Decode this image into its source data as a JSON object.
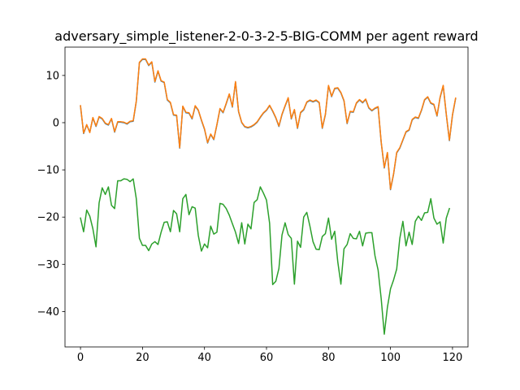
{
  "chart_data": {
    "type": "line",
    "title": "adversary_simple_listener-2-0-3-2-5-BIG-COMM per agent reward",
    "xlabel": "",
    "ylabel": "",
    "xlim": [
      -5,
      125
    ],
    "ylim": [
      -47.5,
      16
    ],
    "xticks": [
      0,
      20,
      40,
      60,
      80,
      100,
      120
    ],
    "yticks": [
      -40,
      -30,
      -20,
      -10,
      0,
      10
    ],
    "grid": false,
    "legend": "none",
    "series": [
      {
        "color": "#1f77b4",
        "values": [
          3.5,
          -2.3,
          -0.5,
          -2.0,
          1.0,
          -0.8,
          1.2,
          0.8,
          -0.2,
          -0.5,
          0.8,
          -2.0,
          0.1,
          0.1,
          0.0,
          -0.3,
          0.2,
          0.3,
          4.5,
          12.7,
          13.4,
          13.4,
          12.1,
          12.8,
          8.6,
          10.9,
          8.8,
          8.5,
          4.8,
          4.2,
          1.6,
          1.5,
          -5.4,
          3.4,
          2.1,
          2.0,
          0.8,
          3.5,
          2.6,
          0.5,
          -1.4,
          -4.3,
          -2.5,
          -3.6,
          -0.5,
          2.9,
          2.1,
          4.0,
          6.0,
          3.3,
          8.6,
          2.3,
          0.0,
          -0.9,
          -1.1,
          -0.9,
          -0.5,
          0.1,
          1.1,
          2.0,
          2.6,
          3.6,
          2.4,
          1.0,
          -0.8,
          1.7,
          3.5,
          5.2,
          0.8,
          2.7,
          -1.2,
          2.1,
          2.7,
          4.3,
          4.7,
          4.4,
          4.7,
          4.2,
          -1.2,
          1.7,
          7.8,
          5.5,
          7.2,
          7.3,
          6.3,
          4.6,
          -0.2,
          2.3,
          2.2,
          4.1,
          4.8,
          4.2,
          4.9,
          3.1,
          2.5,
          3.0,
          3.3,
          -4.2,
          -9.6,
          -6.4,
          -14.2,
          -10.9,
          -6.4,
          -5.4,
          -3.7,
          -2.0,
          -1.6,
          0.6,
          1.1,
          0.9,
          2.6,
          4.8,
          5.4,
          4.1,
          3.8,
          1.4,
          5.3,
          7.8,
          1.7,
          -3.8,
          1.6,
          5.1
        ]
      },
      {
        "color": "#ff7f0e",
        "values": [
          3.6,
          -2.2,
          -0.4,
          -2.1,
          1.1,
          -0.7,
          1.3,
          0.9,
          -0.1,
          -0.4,
          0.9,
          -1.9,
          0.2,
          0.2,
          0.1,
          -0.2,
          0.3,
          0.4,
          4.6,
          12.8,
          13.5,
          13.5,
          12.2,
          12.9,
          8.7,
          11.0,
          8.9,
          8.6,
          4.9,
          4.3,
          1.7,
          1.6,
          -5.3,
          3.5,
          2.2,
          2.1,
          0.9,
          3.6,
          2.7,
          0.6,
          -1.3,
          -4.2,
          -2.4,
          -3.5,
          -0.4,
          3.0,
          2.2,
          4.1,
          6.1,
          3.4,
          8.7,
          2.4,
          0.1,
          -0.8,
          -1.0,
          -0.8,
          -0.4,
          0.2,
          1.2,
          2.1,
          2.7,
          3.7,
          2.5,
          1.1,
          -0.7,
          1.8,
          3.6,
          5.3,
          0.9,
          2.8,
          -1.1,
          2.2,
          2.8,
          4.4,
          4.8,
          4.5,
          4.8,
          4.3,
          -1.1,
          1.8,
          7.9,
          5.6,
          7.3,
          7.4,
          6.4,
          4.7,
          -0.1,
          2.4,
          2.3,
          4.2,
          4.9,
          4.3,
          5.0,
          3.2,
          2.6,
          3.1,
          3.4,
          -4.1,
          -9.5,
          -6.3,
          -14.1,
          -10.8,
          -6.3,
          -5.3,
          -3.6,
          -1.9,
          -1.5,
          0.7,
          1.2,
          1.0,
          2.7,
          4.9,
          5.5,
          4.2,
          3.9,
          1.5,
          5.4,
          7.9,
          1.8,
          -3.7,
          1.7,
          5.2
        ]
      },
      {
        "color": "#2ca02c",
        "values": [
          -20.2,
          -23.1,
          -18.5,
          -19.8,
          -22.5,
          -26.3,
          -17.0,
          -13.8,
          -15.2,
          -13.6,
          -17.5,
          -18.2,
          -12.3,
          -12.3,
          -11.9,
          -12.0,
          -12.5,
          -11.9,
          -16.1,
          -24.5,
          -26.0,
          -26.0,
          -27.1,
          -25.7,
          -25.2,
          -25.8,
          -23.2,
          -21.1,
          -21.0,
          -23.1,
          -18.6,
          -19.3,
          -23.1,
          -16.1,
          -15.2,
          -19.5,
          -17.8,
          -18.1,
          -23.9,
          -27.2,
          -25.7,
          -26.5,
          -21.9,
          -23.6,
          -23.2,
          -17.1,
          -17.3,
          -18.2,
          -19.6,
          -21.4,
          -23.2,
          -25.6,
          -21.2,
          -25.7,
          -21.5,
          -22.5,
          -16.9,
          -16.3,
          -13.6,
          -14.9,
          -16.4,
          -21.3,
          -34.3,
          -33.6,
          -30.9,
          -23.8,
          -21.2,
          -23.7,
          -24.5,
          -34.2,
          -25.1,
          -26.4,
          -20.0,
          -19.0,
          -21.9,
          -25.2,
          -26.8,
          -26.9,
          -24.1,
          -23.5,
          -20.2,
          -24.7,
          -23.0,
          -29.5,
          -34.2,
          -26.7,
          -25.8,
          -23.5,
          -24.5,
          -24.6,
          -23.0,
          -26.1,
          -23.4,
          -23.3,
          -23.3,
          -28.2,
          -31.2,
          -37.3,
          -44.8,
          -39.1,
          -35.2,
          -33.3,
          -31.0,
          -24.5,
          -20.9,
          -26.1,
          -23.2,
          -25.8,
          -20.9,
          -19.8,
          -20.7,
          -19.1,
          -19.0,
          -16.1,
          -20.2,
          -21.5,
          -21.0,
          -25.5,
          -20.2,
          -18.2
        ]
      }
    ]
  }
}
